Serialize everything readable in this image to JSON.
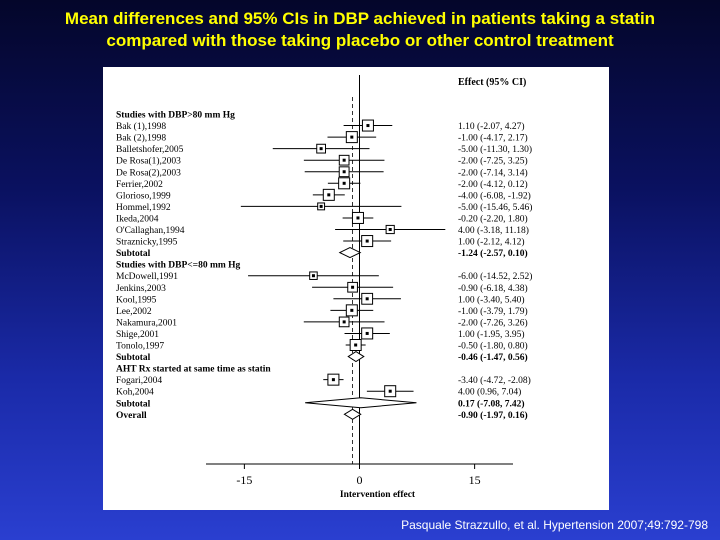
{
  "slide": {
    "title_line1": "Mean differences and 95% CIs in DBP achieved in patients taking a statin",
    "title_line2": "compared with those taking placebo or other control treatment",
    "citation": "Pasquale Strazzullo, et al. Hypertension 2007;49:792-798"
  },
  "chart_data": {
    "type": "forest",
    "effect_header": "Effect (95% CI)",
    "xlabel": "Intervention effect",
    "xticks": [
      -15,
      0,
      15
    ],
    "xlim": [
      -20,
      20
    ],
    "rows": [
      {
        "kind": "header",
        "label": "Studies with DBP>80 mm Hg"
      },
      {
        "kind": "study",
        "label": "Bak (1),1998",
        "est": 1.1,
        "lo": -2.07,
        "hi": 4.27,
        "ci_text": "1.10 (-2.07, 4.27)"
      },
      {
        "kind": "study",
        "label": "Bak (2),1998",
        "est": -1.0,
        "lo": -4.17,
        "hi": 2.17,
        "ci_text": "-1.00 (-4.17, 2.17)"
      },
      {
        "kind": "study",
        "label": "Balletshofer,2005",
        "est": -5.0,
        "lo": -11.3,
        "hi": 1.3,
        "ci_text": "-5.00 (-11.30, 1.30)"
      },
      {
        "kind": "study",
        "label": "De Rosa(1),2003",
        "est": -2.0,
        "lo": -7.25,
        "hi": 3.25,
        "ci_text": "-2.00 (-7.25, 3.25)"
      },
      {
        "kind": "study",
        "label": "De Rosa(2),2003",
        "est": -2.0,
        "lo": -7.14,
        "hi": 3.14,
        "ci_text": "-2.00 (-7.14, 3.14)"
      },
      {
        "kind": "study",
        "label": "Ferrier,2002",
        "est": -2.0,
        "lo": -4.12,
        "hi": 0.12,
        "ci_text": "-2.00 (-4.12, 0.12)"
      },
      {
        "kind": "study",
        "label": "Glorioso,1999",
        "est": -4.0,
        "lo": -6.08,
        "hi": -1.92,
        "ci_text": "-4.00 (-6.08, -1.92)"
      },
      {
        "kind": "study",
        "label": "Hommel,1992",
        "est": -5.0,
        "lo": -15.46,
        "hi": 5.46,
        "ci_text": "-5.00 (-15.46, 5.46)"
      },
      {
        "kind": "study",
        "label": "Ikeda,2004",
        "est": -0.2,
        "lo": -2.2,
        "hi": 1.8,
        "ci_text": "-0.20 (-2.20, 1.80)"
      },
      {
        "kind": "study",
        "label": "O'Callaghan,1994",
        "est": 4.0,
        "lo": -3.18,
        "hi": 11.18,
        "ci_text": "4.00 (-3.18, 11.18)"
      },
      {
        "kind": "study",
        "label": "Straznicky,1995",
        "est": 1.0,
        "lo": -2.12,
        "hi": 4.12,
        "ci_text": "1.00 (-2.12, 4.12)"
      },
      {
        "kind": "subtotal",
        "label": "Subtotal",
        "est": -1.24,
        "lo": -2.57,
        "hi": 0.1,
        "ci_text": "-1.24 (-2.57, 0.10)"
      },
      {
        "kind": "header",
        "label": "Studies with DBP<=80 mm Hg"
      },
      {
        "kind": "study",
        "label": "McDowell,1991",
        "est": -6.0,
        "lo": -14.52,
        "hi": 2.52,
        "ci_text": "-6.00 (-14.52, 2.52)"
      },
      {
        "kind": "study",
        "label": "Jenkins,2003",
        "est": -0.9,
        "lo": -6.18,
        "hi": 4.38,
        "ci_text": "-0.90 (-6.18, 4.38)"
      },
      {
        "kind": "study",
        "label": "Kool,1995",
        "est": 1.0,
        "lo": -3.4,
        "hi": 5.4,
        "ci_text": "1.00 (-3.40, 5.40)"
      },
      {
        "kind": "study",
        "label": "Lee,2002",
        "est": -1.0,
        "lo": -3.79,
        "hi": 1.79,
        "ci_text": "-1.00 (-3.79, 1.79)"
      },
      {
        "kind": "study",
        "label": "Nakamura,2001",
        "est": -2.0,
        "lo": -7.26,
        "hi": 3.26,
        "ci_text": "-2.00 (-7.26, 3.26)"
      },
      {
        "kind": "study",
        "label": "Shige,2001",
        "est": 1.0,
        "lo": -1.95,
        "hi": 3.95,
        "ci_text": "1.00 (-1.95, 3.95)"
      },
      {
        "kind": "study",
        "label": "Tonolo,1997",
        "est": -0.5,
        "lo": -1.8,
        "hi": 0.8,
        "ci_text": "-0.50 (-1.80, 0.80)"
      },
      {
        "kind": "subtotal",
        "label": "Subtotal",
        "est": -0.46,
        "lo": -1.47,
        "hi": 0.56,
        "ci_text": "-0.46 (-1.47, 0.56)"
      },
      {
        "kind": "header",
        "label": "AHT Rx started at same time as statin"
      },
      {
        "kind": "study",
        "label": "Fogari,2004",
        "est": -3.4,
        "lo": -4.72,
        "hi": -2.08,
        "ci_text": "-3.40 (-4.72, -2.08)"
      },
      {
        "kind": "study",
        "label": "Koh,2004",
        "est": 4.0,
        "lo": 0.96,
        "hi": 7.04,
        "ci_text": "4.00 (0.96, 7.04)"
      },
      {
        "kind": "subtotal",
        "label": "Subtotal",
        "est": 0.17,
        "lo": -7.08,
        "hi": 7.42,
        "ci_text": "0.17 (-7.08, 7.42)"
      },
      {
        "kind": "overall",
        "label": "Overall",
        "est": -0.9,
        "lo": -1.97,
        "hi": 0.16,
        "ci_text": "-0.90 (-1.97, 0.16)"
      }
    ]
  }
}
